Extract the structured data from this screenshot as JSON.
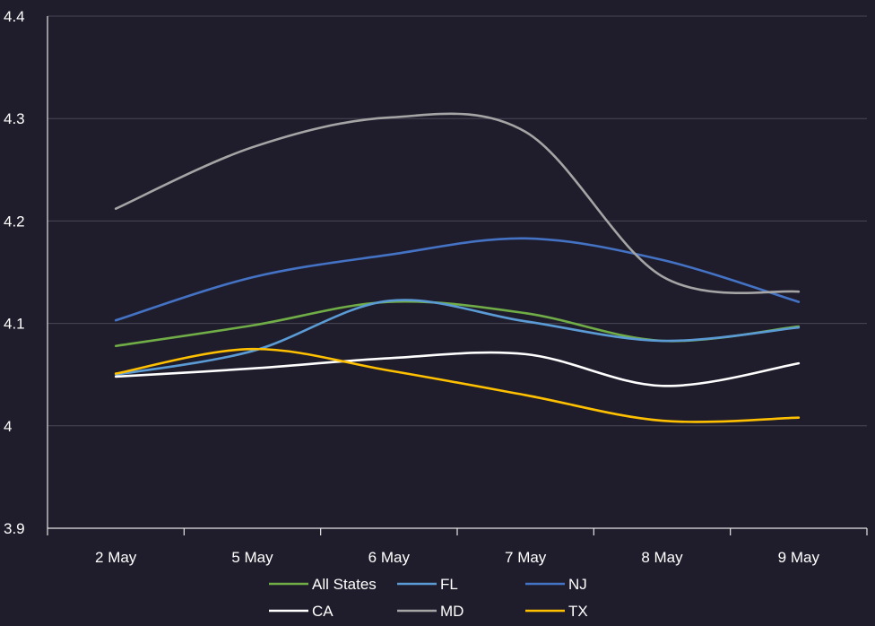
{
  "chart_data": {
    "type": "line",
    "categories": [
      "2 May",
      "5 May",
      "6 May",
      "7 May",
      "8 May",
      "9 May"
    ],
    "ylim": [
      3.9,
      4.4
    ],
    "yticks": [
      "3.9",
      "4",
      "4.1",
      "4.2",
      "4.3",
      "4.4"
    ],
    "grid": true,
    "legend_position": "bottom",
    "series": [
      {
        "name": "All States",
        "color": "#70ad47",
        "values": [
          4.078,
          4.098,
          4.121,
          4.11,
          4.083,
          4.097
        ]
      },
      {
        "name": "FL",
        "color": "#5b9bd5",
        "values": [
          4.05,
          4.073,
          4.122,
          4.102,
          4.083,
          4.096
        ]
      },
      {
        "name": "NJ",
        "color": "#4472c4",
        "values": [
          4.103,
          4.145,
          4.167,
          4.183,
          4.162,
          4.121
        ]
      },
      {
        "name": "CA",
        "color": "#ffffff",
        "values": [
          4.048,
          4.056,
          4.066,
          4.07,
          4.039,
          4.061
        ]
      },
      {
        "name": "MD",
        "color": "#a5a5a5",
        "values": [
          4.212,
          4.272,
          4.301,
          4.287,
          4.146,
          4.131
        ]
      },
      {
        "name": "TX",
        "color": "#ffc000",
        "values": [
          4.051,
          4.075,
          4.054,
          4.03,
          4.005,
          4.008
        ]
      }
    ]
  }
}
